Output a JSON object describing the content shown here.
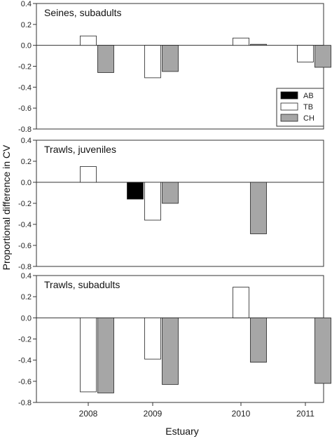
{
  "chart_data": {
    "type": "bar",
    "ylabel": "Proportional difference in CV",
    "xlabel": "Estuary",
    "categories": [
      "2008",
      "2009",
      "2010",
      "2011"
    ],
    "ylim": [
      -0.8,
      0.4
    ],
    "yticks": [
      "0.4",
      "0.2",
      "0.0",
      "-0.2",
      "-0.4",
      "-0.6",
      "-0.8"
    ],
    "colors": {
      "AB": "#000000",
      "TB": "#ffffff",
      "CH": "#a6a6a6"
    },
    "legend": {
      "position": "right, inside top panel",
      "entries": [
        "AB",
        "TB",
        "CH"
      ]
    },
    "panels": [
      {
        "title": "Seines, subadults",
        "series": [
          {
            "name": "AB",
            "values": [
              null,
              null,
              null,
              null
            ]
          },
          {
            "name": "TB",
            "values": [
              0.09,
              -0.31,
              0.07,
              -0.16
            ]
          },
          {
            "name": "CH",
            "values": [
              -0.26,
              -0.25,
              0.01,
              -0.21
            ]
          }
        ]
      },
      {
        "title": "Trawls, juveniles",
        "series": [
          {
            "name": "AB",
            "values": [
              null,
              -0.16,
              null,
              null
            ]
          },
          {
            "name": "TB",
            "values": [
              0.15,
              -0.36,
              null,
              null
            ]
          },
          {
            "name": "CH",
            "values": [
              null,
              -0.2,
              -0.49,
              null
            ]
          }
        ]
      },
      {
        "title": "Trawls, subadults",
        "series": [
          {
            "name": "AB",
            "values": [
              null,
              null,
              null,
              null
            ]
          },
          {
            "name": "TB",
            "values": [
              -0.7,
              -0.39,
              0.29,
              null
            ]
          },
          {
            "name": "CH",
            "values": [
              -0.71,
              -0.63,
              -0.42,
              -0.62
            ]
          }
        ]
      }
    ]
  }
}
